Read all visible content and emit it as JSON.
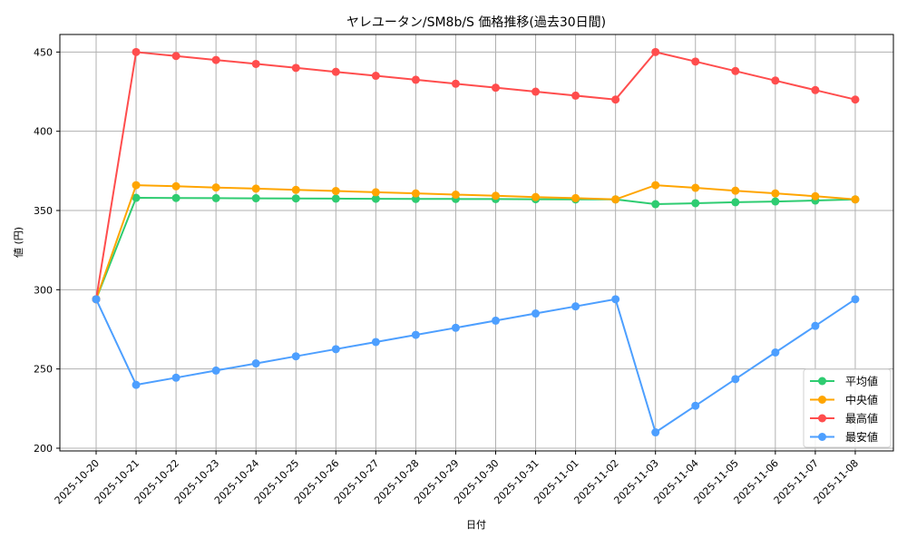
{
  "chart_data": {
    "type": "line",
    "title": "ヤレユータン/SM8b/S 価格推移(過去30日間)",
    "xlabel": "日付",
    "ylabel": "値 (円)",
    "ylim": [
      198,
      462
    ],
    "yticks": [
      200,
      250,
      300,
      350,
      400,
      450
    ],
    "grid": true,
    "legend_position": "lower right",
    "categories": [
      "2025-10-20",
      "2025-10-21",
      "2025-10-22",
      "2025-10-23",
      "2025-10-24",
      "2025-10-25",
      "2025-10-26",
      "2025-10-27",
      "2025-10-28",
      "2025-10-29",
      "2025-10-30",
      "2025-10-31",
      "2025-11-01",
      "2025-11-02",
      "2025-11-03",
      "2025-11-04",
      "2025-11-05",
      "2025-11-06",
      "2025-11-07",
      "2025-11-08"
    ],
    "series": [
      {
        "name": "平均値",
        "color": "#2ecc71",
        "values": [
          294,
          358,
          357.9,
          357.8,
          357.7,
          357.6,
          357.5,
          357.4,
          357.3,
          357.3,
          357.2,
          357.1,
          357,
          357,
          354,
          354.6,
          355.2,
          355.7,
          356.3,
          357
        ]
      },
      {
        "name": "中央値",
        "color": "#ffa500",
        "values": [
          294,
          366,
          365.3,
          364.5,
          363.8,
          363,
          362.3,
          361.5,
          360.8,
          360,
          359.3,
          358.5,
          357.8,
          357,
          366,
          364.3,
          362.5,
          360.8,
          359,
          357
        ]
      },
      {
        "name": "最高値",
        "color": "#ff4d4d",
        "values": [
          294,
          450,
          447.5,
          445,
          442.5,
          440,
          437.5,
          435,
          432.5,
          430,
          427.5,
          425,
          422.5,
          420,
          450,
          444,
          438,
          432,
          426,
          420
        ]
      },
      {
        "name": "最安値",
        "color": "#4d9fff",
        "values": [
          294,
          240,
          244.5,
          249,
          253.5,
          258,
          262.5,
          267,
          271.5,
          276,
          280.5,
          285,
          289.5,
          294,
          210,
          226.8,
          243.6,
          260.4,
          277.2,
          294
        ]
      }
    ]
  }
}
